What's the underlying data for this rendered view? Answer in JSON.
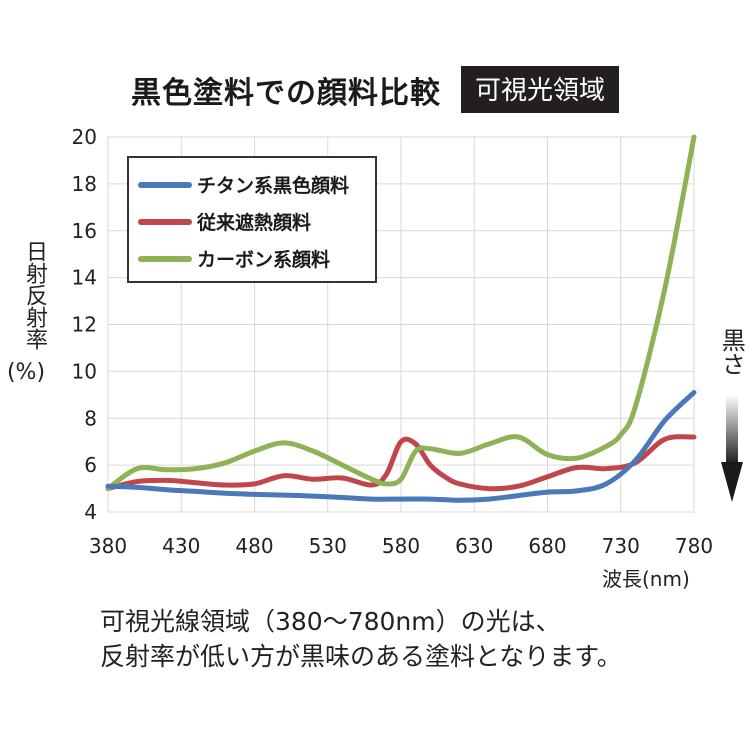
{
  "title": "黒色塗料での顔料比較",
  "badge": "可視光領域",
  "y_axis_label": "日射反射率",
  "y_axis_unit": "(%)",
  "x_axis_unit": "波長(nm)",
  "blackness_label": "黒さ",
  "note_lines": [
    "可視光線領域（380〜780nm）の光は、",
    "反射率が低い方が黒味のある塗料となります。"
  ],
  "chart_data": {
    "type": "line",
    "title": "黒色塗料での顔料比較",
    "xlabel": "波長(nm)",
    "ylabel": "日射反射率(%)",
    "xlim": [
      380,
      780
    ],
    "ylim": [
      4,
      20
    ],
    "x_ticks": [
      "380",
      "430",
      "480",
      "530",
      "580",
      "630",
      "680",
      "730",
      "780"
    ],
    "y_ticks": [
      "4",
      "6",
      "8",
      "10",
      "12",
      "14",
      "16",
      "18",
      "20"
    ],
    "grid": true,
    "legend_position": "top-left",
    "series": [
      {
        "name": "チタン系黒色顔料",
        "color": "#4a78b8",
        "x": [
          380,
          400,
          420,
          440,
          460,
          480,
          500,
          520,
          540,
          560,
          580,
          600,
          620,
          640,
          660,
          680,
          700,
          720,
          740,
          760,
          780
        ],
        "y": [
          5.1,
          5.05,
          4.95,
          4.88,
          4.8,
          4.75,
          4.72,
          4.68,
          4.62,
          4.55,
          4.55,
          4.55,
          4.5,
          4.55,
          4.7,
          4.85,
          4.9,
          5.2,
          6.2,
          7.9,
          9.1
        ]
      },
      {
        "name": "従来遮熱顔料",
        "color": "#c0464b",
        "x": [
          380,
          400,
          420,
          440,
          460,
          480,
          500,
          520,
          540,
          560,
          570,
          580,
          590,
          600,
          610,
          620,
          640,
          660,
          680,
          700,
          720,
          740,
          760,
          780
        ],
        "y": [
          5.0,
          5.3,
          5.35,
          5.25,
          5.15,
          5.2,
          5.55,
          5.4,
          5.45,
          5.15,
          5.6,
          7.0,
          6.9,
          6.0,
          5.5,
          5.2,
          5.0,
          5.1,
          5.5,
          5.9,
          5.85,
          6.1,
          7.1,
          7.2
        ]
      },
      {
        "name": "カーボン系顔料",
        "color": "#8db356",
        "x": [
          380,
          400,
          420,
          440,
          460,
          480,
          500,
          520,
          540,
          560,
          570,
          580,
          590,
          600,
          620,
          640,
          660,
          680,
          700,
          720,
          730,
          740,
          760,
          780
        ],
        "y": [
          5.0,
          5.85,
          5.8,
          5.85,
          6.1,
          6.6,
          6.95,
          6.6,
          6.0,
          5.4,
          5.2,
          5.4,
          6.6,
          6.7,
          6.5,
          6.9,
          7.2,
          6.45,
          6.3,
          6.8,
          7.3,
          8.5,
          13.5,
          20.0
        ]
      }
    ]
  }
}
